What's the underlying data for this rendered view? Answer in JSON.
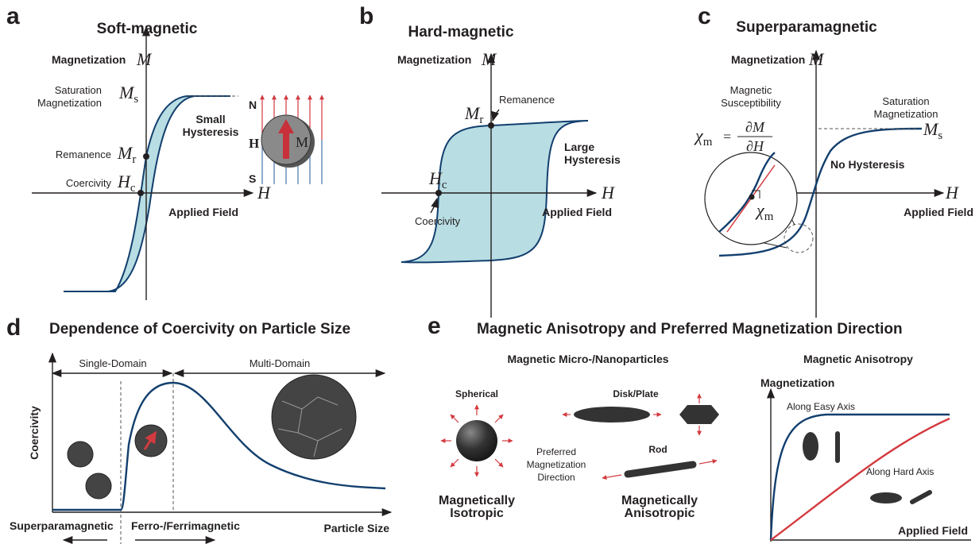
{
  "panel_a": {
    "letter": "a",
    "title": "Soft-magnetic",
    "y_axis_label": "Magnetization",
    "y_axis_symbol": "M",
    "x_axis_symbol": "H",
    "x_axis_label": "Applied Field",
    "saturation_label": [
      "Saturation",
      "Magnetization"
    ],
    "saturation_symbol": {
      "symbol": "M",
      "sub": "s"
    },
    "remanence_label": "Remanence",
    "remanence_symbol": {
      "symbol": "M",
      "sub": "r"
    },
    "coercivity_label": "Coercivity",
    "coercivity_symbol": {
      "symbol": "H",
      "sub": "c"
    },
    "hysteresis_label": [
      "Small",
      "Hysteresis"
    ],
    "inset": {
      "north": "N",
      "field": "H",
      "south": "S",
      "moment": "M"
    }
  },
  "panel_b": {
    "letter": "b",
    "title": "Hard-magnetic",
    "y_axis_label": "Magnetization",
    "y_axis_symbol": "M",
    "x_axis_symbol": "H",
    "x_axis_label": "Applied Field",
    "remanence_label": "Remanence",
    "remanence_symbol": {
      "symbol": "M",
      "sub": "r"
    },
    "coercivity_label": "Coercivity",
    "coercivity_symbol": {
      "symbol": "H",
      "sub": "c"
    },
    "hysteresis_label": [
      "Large",
      "Hysteresis"
    ]
  },
  "panel_c": {
    "letter": "c",
    "title": "Superparamagnetic",
    "y_axis_label": "Magnetization",
    "y_axis_symbol": "M",
    "x_axis_symbol": "H",
    "x_axis_label": "Applied Field",
    "susceptibility_label": [
      "Magnetic",
      "Susceptibility"
    ],
    "formula": {
      "lhs": {
        "symbol": "χ",
        "sub": "m"
      },
      "equals": "=",
      "numerator": "∂M",
      "denominator": "∂H"
    },
    "saturation_label": [
      "Saturation",
      "Magnetization"
    ],
    "saturation_symbol": {
      "symbol": "M",
      "sub": "s"
    },
    "hysteresis_label": "No Hysteresis",
    "zoom_symbol": {
      "symbol": "χ",
      "sub": "m"
    }
  },
  "panel_d": {
    "letter": "d",
    "title": "Dependence of Coercivity on Particle Size",
    "single_domain": "Single-Domain",
    "multi_domain": "Multi-Domain",
    "y_axis_label": "Coercivity",
    "x_axis_label": "Particle Size",
    "superparamagnetic": "Superparamagnetic",
    "ferromagnetic": "Ferro-/Ferrimagnetic"
  },
  "panel_e": {
    "letter": "e",
    "title": "Magnetic Anisotropy and Preferred Magnetization Direction",
    "particles_title": "Magnetic Micro-/Nanoparticles",
    "spherical": "Spherical",
    "disk": "Disk/Plate",
    "rod": "Rod",
    "preferred_direction": [
      "Preferred",
      "Magnetization",
      "Direction"
    ],
    "isotropic": [
      "Magnetically",
      "Isotropic"
    ],
    "anisotropic": [
      "Magnetically",
      "Anisotropic"
    ],
    "anisotropy_title": "Magnetic Anisotropy",
    "y_axis_label": "Magnetization",
    "easy_axis": "Along Easy Axis",
    "hard_axis": "Along Hard Axis",
    "x_axis_label": "Applied Field"
  }
}
